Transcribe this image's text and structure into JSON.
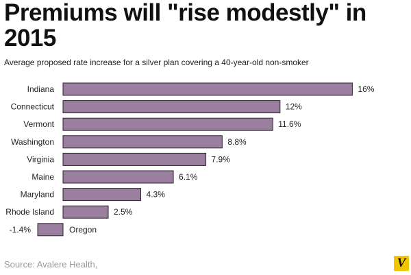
{
  "title": "Premiums will \"rise modestly\" in 2015",
  "subtitle": "Average proposed rate increase for a silver plan covering a 40-year-old non-smoker",
  "source": "Source: Avalere Health,",
  "logo_text": "V",
  "colors": {
    "bar": "#9b7f9e",
    "bar_stroke": "#2e2330",
    "text": "#222222",
    "source": "#9a9a9a",
    "logo_bg": "#f3c500"
  },
  "chart_data": {
    "type": "bar",
    "orientation": "horizontal",
    "title": "Premiums will \"rise modestly\" in 2015",
    "subtitle": "Average proposed rate increase for a silver plan covering a 40-year-old non-smoker",
    "categories": [
      "Indiana",
      "Connecticut",
      "Vermont",
      "Washington",
      "Virginia",
      "Maine",
      "Maryland",
      "Rhode Island",
      "Oregon"
    ],
    "values": [
      16,
      12,
      11.6,
      8.8,
      7.9,
      6.1,
      4.3,
      2.5,
      -1.4
    ],
    "value_labels": [
      "16%",
      "12%",
      "11.6%",
      "8.8%",
      "7.9%",
      "6.1%",
      "4.3%",
      "2.5%",
      "-1.4%"
    ],
    "xlim": [
      -1.4,
      16
    ],
    "unit": "%"
  }
}
